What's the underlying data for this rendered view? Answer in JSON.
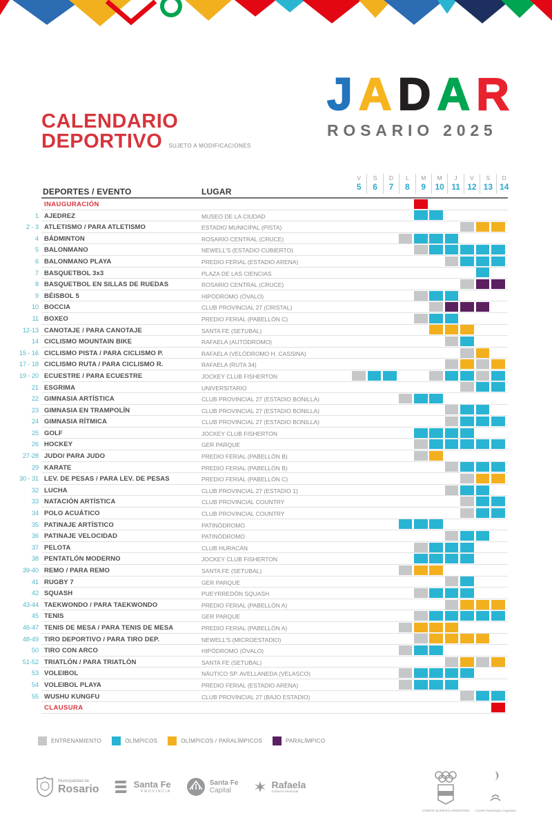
{
  "header": {
    "title_line1": "CALENDARIO",
    "title_line2": "DEPORTIVO",
    "title_note": "SUJETO A MODIFICACIONES",
    "logo_letters": [
      {
        "char": "J",
        "color": "#2274bb"
      },
      {
        "char": "A",
        "color": "#f6b41f"
      },
      {
        "char": "D",
        "color": "#231f20"
      },
      {
        "char": "A",
        "color": "#00a551"
      },
      {
        "char": "R",
        "color": "#e8222d"
      }
    ],
    "logo_subtitle": "ROSARIO 2025"
  },
  "table": {
    "col_event": "DEPORTES / EVENTO",
    "col_venue": "LUGAR",
    "days": [
      {
        "dow": "V",
        "num": "5"
      },
      {
        "dow": "S",
        "num": "6"
      },
      {
        "dow": "D",
        "num": "7"
      },
      {
        "dow": "L",
        "num": "8"
      },
      {
        "dow": "M",
        "num": "9"
      },
      {
        "dow": "M",
        "num": "10"
      },
      {
        "dow": "J",
        "num": "11"
      },
      {
        "dow": "V",
        "num": "12"
      },
      {
        "dow": "S",
        "num": "13"
      },
      {
        "dow": "D",
        "num": "14"
      }
    ],
    "rows": [
      {
        "num": "",
        "name": "INAUGURACIÓN",
        "venue": "",
        "special": true,
        "cells": {
          "9": "r"
        }
      },
      {
        "num": "1",
        "name": "AJEDREZ",
        "venue": "MUSEO DE LA CIUDAD",
        "cells": {
          "9": "o",
          "10": "o"
        }
      },
      {
        "num": "2 - 3",
        "name": "ATLETISMO / PARA ATLETISMO",
        "venue": "ESTADIO MUNICIPAL (PISTA)",
        "cells": {
          "12": "t",
          "13": "y",
          "14": "y"
        }
      },
      {
        "num": "4",
        "name": "BÁDMINTON",
        "venue": "ROSARIO CENTRAL (CRUCE)",
        "cells": {
          "8": "t",
          "9": "o",
          "10": "o",
          "11": "o"
        }
      },
      {
        "num": "5",
        "name": "BALONMANO",
        "venue": "NEWELL'S (ESTADIO CUBIERTO)",
        "cells": {
          "9": "t",
          "10": "o",
          "11": "o",
          "12": "o",
          "13": "o",
          "14": "o"
        }
      },
      {
        "num": "6",
        "name": "BALONMANO PLAYA",
        "venue": "PREDIO FERIAL (ESTADIO ARENA)",
        "cells": {
          "11": "t",
          "12": "o",
          "13": "o",
          "14": "o"
        }
      },
      {
        "num": "7",
        "name": "BASQUETBOL 3x3",
        "venue": "PLAZA DE LAS CIENCIAS",
        "cells": {
          "13": "o"
        }
      },
      {
        "num": "8",
        "name": "BASQUETBOL EN SILLAS DE RUEDAS",
        "venue": "ROSARIO CENTRAL (CRUCE)",
        "cells": {
          "12": "t",
          "13": "p",
          "14": "p"
        }
      },
      {
        "num": "9",
        "name": "BÉISBOL 5",
        "venue": "HIPÓDROMO (ÓVALO)",
        "cells": {
          "9": "t",
          "10": "o",
          "11": "o"
        }
      },
      {
        "num": "10",
        "name": "BOCCIA",
        "venue": "CLUB PROVINCIAL 27 (CRISTAL)",
        "cells": {
          "10": "t",
          "11": "p",
          "12": "p",
          "13": "p"
        }
      },
      {
        "num": "11",
        "name": "BOXEO",
        "venue": "PREDIO FERIAL (PABELLÓN C)",
        "cells": {
          "9": "t",
          "10": "o",
          "11": "o"
        }
      },
      {
        "num": "12-13",
        "name": "CANOTAJE / PARA CANOTAJE",
        "venue": "SANTA FE (SETUBAL)",
        "cells": {
          "10": "y",
          "11": "y",
          "12": "y"
        }
      },
      {
        "num": "14",
        "name": "CICLISMO MOUNTAIN BIKE",
        "venue": "RAFAELA (AUTÓDROMO)",
        "cells": {
          "11": "t",
          "12": "o"
        }
      },
      {
        "num": "15 - 16",
        "name": "CICLISMO PISTA / PARA CICLISMO P.",
        "venue": "RAFAELA (VELÓDROMO H. CASSINA)",
        "cells": {
          "12": "t",
          "13": "y"
        }
      },
      {
        "num": "17 - 18",
        "name": "CICLISMO RUTA / PARA CICLISMO R.",
        "venue": "RAFAELA (RUTA 34)",
        "cells": {
          "11": "t",
          "12": "y",
          "13": "t",
          "14": "y"
        }
      },
      {
        "num": "19 - 20",
        "name": "ECUESTRE / PARA ECUESTRE",
        "venue": "JOCKEY CLUB FISHERTON",
        "cells": {
          "5": "t",
          "6": "o",
          "7": "o",
          "10": "t",
          "11": "o",
          "12": "o",
          "13": "t",
          "14": "o"
        }
      },
      {
        "num": "21",
        "name": "ESGRIMA",
        "venue": "UNIVERSITARIO",
        "cells": {
          "12": "t",
          "13": "o",
          "14": "o"
        }
      },
      {
        "num": "22",
        "name": "GIMNASIA ARTÍSTICA",
        "venue": "CLUB PROVINCIAL 27 (ESTADIO BONILLA)",
        "cells": {
          "8": "t",
          "9": "o",
          "10": "o"
        }
      },
      {
        "num": "23",
        "name": "GIMNASIA EN TRAMPOLÍN",
        "venue": "CLUB PROVINCIAL 27 (ESTADIO BONILLA)",
        "cells": {
          "11": "t",
          "12": "o",
          "13": "o"
        }
      },
      {
        "num": "24",
        "name": "GIMNASIA RÍTMICA",
        "venue": "CLUB PROVINCIAL 27 (ESTADIO BONILLA)",
        "cells": {
          "11": "t",
          "12": "o",
          "13": "o",
          "14": "o"
        }
      },
      {
        "num": "25",
        "name": "GOLF",
        "venue": "JOCKEY CLUB FISHERTON",
        "cells": {
          "9": "o",
          "10": "o",
          "11": "o",
          "12": "o"
        }
      },
      {
        "num": "26",
        "name": "HOCKEY",
        "venue": "GER PARQUE",
        "cells": {
          "9": "t",
          "10": "o",
          "11": "o",
          "12": "o",
          "13": "o",
          "14": "o"
        }
      },
      {
        "num": "27-28",
        "name": "JUDO/ PARA JUDO",
        "venue": "PREDIO FERIAL (PABELLÓN B)",
        "cells": {
          "9": "t",
          "10": "y"
        }
      },
      {
        "num": "29",
        "name": "KARATE",
        "venue": "PREDIO FERIAL (PABELLÓN B)",
        "cells": {
          "11": "t",
          "12": "o",
          "13": "o",
          "14": "o"
        }
      },
      {
        "num": "30 - 31",
        "name": "LEV. DE PESAS / PARA LEV. DE PESAS",
        "venue": "PREDIO FERIAL (PABELLÓN C)",
        "cells": {
          "12": "t",
          "13": "y",
          "14": "y"
        }
      },
      {
        "num": "32",
        "name": "LUCHA",
        "venue": "CLUB PROVINCIAL 27 (ESTADIO 1)",
        "cells": {
          "11": "t",
          "12": "o",
          "13": "o"
        }
      },
      {
        "num": "33",
        "name": "NATACIÓN ARTÍSTICA",
        "venue": "CLUB PROVINCIAL COUNTRY",
        "cells": {
          "12": "t",
          "13": "o",
          "14": "o"
        }
      },
      {
        "num": "34",
        "name": "POLO ACUÁTICO",
        "venue": "CLUB PROVINCIAL COUNTRY",
        "cells": {
          "12": "t",
          "13": "o",
          "14": "o"
        }
      },
      {
        "num": "35",
        "name": "PATINAJE ARTÍSTICO",
        "venue": "PATINÓDROMO",
        "cells": {
          "8": "o",
          "9": "o",
          "10": "o"
        }
      },
      {
        "num": "36",
        "name": "PATINAJE VELOCIDAD",
        "venue": "PATINÓDROMO",
        "cells": {
          "11": "t",
          "12": "o",
          "13": "o"
        }
      },
      {
        "num": "37",
        "name": "PELOTA",
        "venue": "CLUB HURACÁN",
        "cells": {
          "9": "t",
          "10": "o",
          "11": "o",
          "12": "o"
        }
      },
      {
        "num": "38",
        "name": "PENTATLÓN MODERNO",
        "venue": "JOCKEY CLUB FISHERTON",
        "cells": {
          "9": "o",
          "10": "o",
          "11": "o",
          "12": "o"
        }
      },
      {
        "num": "39-40",
        "name": "REMO / PARA REMO",
        "venue": "SANTA FE (SETUBAL)",
        "cells": {
          "8": "t",
          "9": "y",
          "10": "y"
        }
      },
      {
        "num": "41",
        "name": "RUGBY 7",
        "venue": "GER PARQUE",
        "cells": {
          "11": "t",
          "12": "o"
        }
      },
      {
        "num": "42",
        "name": "SQUASH",
        "venue": "PUEYRREDÓN SQUASH",
        "cells": {
          "9": "t",
          "10": "o",
          "11": "o",
          "12": "o"
        }
      },
      {
        "num": "43-44",
        "name": "TAEKWONDO / PARA TAEKWONDO",
        "venue": "PREDIO FERIAL (PABELLÓN A)",
        "cells": {
          "11": "t",
          "12": "y",
          "13": "y",
          "14": "y"
        }
      },
      {
        "num": "45",
        "name": "TENIS",
        "venue": "GER PARQUE",
        "cells": {
          "9": "t",
          "10": "o",
          "11": "o",
          "12": "o",
          "13": "o",
          "14": "o"
        }
      },
      {
        "num": "46-47",
        "name": "TENIS DE MESA / PARA TENIS DE MESA",
        "venue": "PREDIO FERIAL (PABELLÓN A)",
        "cells": {
          "8": "t",
          "9": "y",
          "10": "y",
          "11": "y"
        }
      },
      {
        "num": "48-49",
        "name": "TIRO DEPORTIVO / PARA TIRO DEP.",
        "venue": "NEWELL'S (MICROESTADIO)",
        "cells": {
          "9": "t",
          "10": "y",
          "11": "y",
          "12": "y",
          "13": "y"
        }
      },
      {
        "num": "50",
        "name": "TIRO CON ARCO",
        "venue": "HIPÓDROMO (ÓVALO)",
        "cells": {
          "8": "t",
          "9": "o",
          "10": "o"
        }
      },
      {
        "num": "51-52",
        "name": "TRIATLÓN / PARA TRIATLÓN",
        "venue": "SANTA FE (SETUBAL)",
        "cells": {
          "11": "t",
          "12": "y",
          "13": "t",
          "14": "y"
        }
      },
      {
        "num": "53",
        "name": "VOLEIBOL",
        "venue": "NÁUTICO SP. AVELLANEDA  (VELASCO)",
        "cells": {
          "8": "t",
          "9": "o",
          "10": "o",
          "11": "o",
          "12": "o"
        }
      },
      {
        "num": "54",
        "name": "VOLEIBOL PLAYA",
        "venue": "PREDIO FERIAL (ESTADIO ARENA)",
        "cells": {
          "8": "t",
          "9": "o",
          "10": "o",
          "11": "o"
        }
      },
      {
        "num": "55",
        "name": "WUSHU KUNGFU",
        "venue": "CLUB PROVINCIAL 27 (BAJO ESTADIO)",
        "cells": {
          "12": "t",
          "13": "o",
          "14": "o"
        }
      },
      {
        "num": "",
        "name": "CLAUSURA",
        "venue": "",
        "special": true,
        "cells": {
          "14": "r"
        }
      }
    ]
  },
  "legend": {
    "items": [
      {
        "type": "t",
        "label": "ENTRENAMIENTO"
      },
      {
        "type": "o",
        "label": "OLÍMPICOS"
      },
      {
        "type": "y",
        "label": "OLÍMPICOS / PARALÍMPICOS"
      },
      {
        "type": "p",
        "label": "PARALÍMPICO"
      }
    ]
  },
  "colors": {
    "training": "#c6c7c9",
    "olympic": "#29b4d4",
    "olympic_paralympic": "#f2b01f",
    "paralympic": "#5a2060",
    "ceremony": "#e30613",
    "title_red": "#d6343c",
    "day_number": "#2aa9cb",
    "event_number": "#54b8ca"
  },
  "footer": {
    "rosario": {
      "line1": "Municipalidad de",
      "line2": "Rosario"
    },
    "santa_fe_provincia": {
      "line1": "Santa Fe",
      "line2": "PROVINCIA"
    },
    "santa_fe_capital": {
      "line1": "Santa Fe",
      "line2": "Capital"
    },
    "rafaela": {
      "line1": "Rafaela",
      "line2": "Gobierno Municipal"
    },
    "olympic_committee": "COMITÉ OLÍMPICO ARGENTINO",
    "paralympic_committee": "Comité Paralímpico Argentino"
  }
}
